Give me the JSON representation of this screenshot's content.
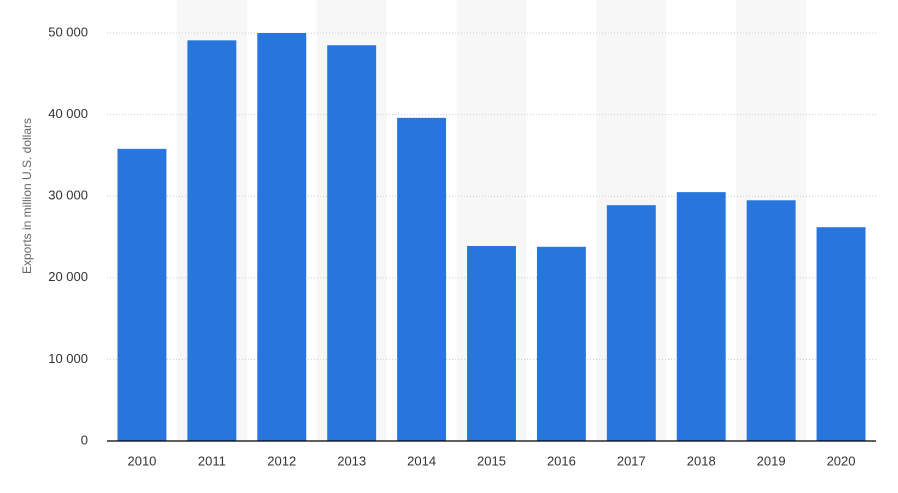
{
  "chart_data": {
    "type": "bar",
    "y_label": "Exports in million U.S. dollars",
    "categories": [
      "2010",
      "2011",
      "2012",
      "2013",
      "2014",
      "2015",
      "2016",
      "2017",
      "2018",
      "2019",
      "2020"
    ],
    "values": [
      35800,
      49100,
      50000,
      48500,
      39600,
      23900,
      23800,
      28900,
      30500,
      29500,
      26200
    ],
    "color": "#2876dd",
    "ylim": [
      0,
      50000
    ],
    "yticks": [
      0,
      {
        "value": 10000,
        "label": "10 000"
      },
      {
        "value": 20000,
        "label": "20 000"
      },
      {
        "value": 30000,
        "label": "30 000"
      },
      {
        "value": 40000,
        "label": "40 000"
      },
      {
        "value": 50000,
        "label": "50 000"
      }
    ],
    "grid": true
  }
}
